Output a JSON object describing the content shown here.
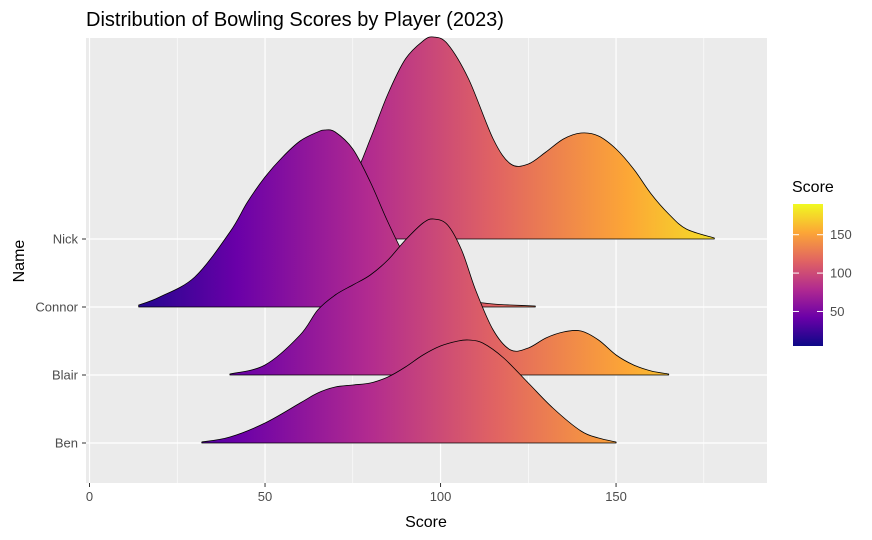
{
  "chart_data": {
    "type": "ridgeline",
    "title": "Distribution of Bowling Scores by Player (2023)",
    "xlabel": "Score",
    "ylabel": "Name",
    "xlim": [
      -1,
      193
    ],
    "x_ticks": [
      0,
      50,
      100,
      150
    ],
    "categories": [
      "Ben",
      "Blair",
      "Connor",
      "Nick"
    ],
    "color_scale": {
      "name": "plasma",
      "title": "Score",
      "range": [
        5,
        190
      ],
      "ticks": [
        50,
        100,
        150
      ],
      "stops": [
        "#0d0887",
        "#6a00a8",
        "#b12a90",
        "#e16462",
        "#fca636",
        "#f0f921"
      ]
    },
    "series": [
      {
        "name": "Ben",
        "x": [
          32,
          40,
          50,
          60,
          65,
          70,
          75,
          80,
          85,
          90,
          95,
          100,
          105,
          108,
          112,
          118,
          125,
          132,
          140,
          145,
          150
        ],
        "density": [
          0.01,
          0.06,
          0.2,
          0.4,
          0.5,
          0.56,
          0.58,
          0.6,
          0.66,
          0.76,
          0.88,
          0.97,
          1.02,
          1.03,
          1.0,
          0.85,
          0.6,
          0.35,
          0.12,
          0.05,
          0.01
        ]
      },
      {
        "name": "Blair",
        "x": [
          40,
          50,
          60,
          65,
          70,
          75,
          80,
          85,
          90,
          95,
          98,
          102,
          106,
          110,
          115,
          120,
          125,
          130,
          135,
          140,
          145,
          150,
          155,
          160,
          165
        ],
        "density": [
          0.01,
          0.1,
          0.4,
          0.65,
          0.8,
          0.9,
          1.0,
          1.15,
          1.35,
          1.52,
          1.56,
          1.5,
          1.25,
          0.85,
          0.45,
          0.25,
          0.27,
          0.37,
          0.43,
          0.44,
          0.35,
          0.2,
          0.1,
          0.04,
          0.01
        ]
      },
      {
        "name": "Connor",
        "x": [
          14,
          20,
          30,
          40,
          45,
          50,
          55,
          60,
          65,
          67,
          70,
          75,
          80,
          85,
          90,
          95,
          100,
          105,
          110,
          115,
          120,
          127
        ],
        "density": [
          0.02,
          0.1,
          0.3,
          0.75,
          1.05,
          1.3,
          1.5,
          1.66,
          1.75,
          1.77,
          1.75,
          1.58,
          1.25,
          0.85,
          0.5,
          0.28,
          0.15,
          0.08,
          0.05,
          0.03,
          0.02,
          0.01
        ]
      },
      {
        "name": "Nick",
        "x": [
          45,
          55,
          65,
          75,
          80,
          85,
          90,
          95,
          98,
          102,
          108,
          115,
          120,
          125,
          130,
          135,
          140,
          145,
          150,
          155,
          160,
          165,
          170,
          178
        ],
        "density": [
          0.0,
          0.02,
          0.08,
          0.6,
          1.0,
          1.45,
          1.8,
          1.98,
          2.02,
          1.95,
          1.6,
          1.0,
          0.75,
          0.75,
          0.87,
          1.0,
          1.06,
          1.03,
          0.9,
          0.7,
          0.45,
          0.25,
          0.1,
          0.01
        ]
      }
    ],
    "legend_position": "right",
    "grid": true
  }
}
